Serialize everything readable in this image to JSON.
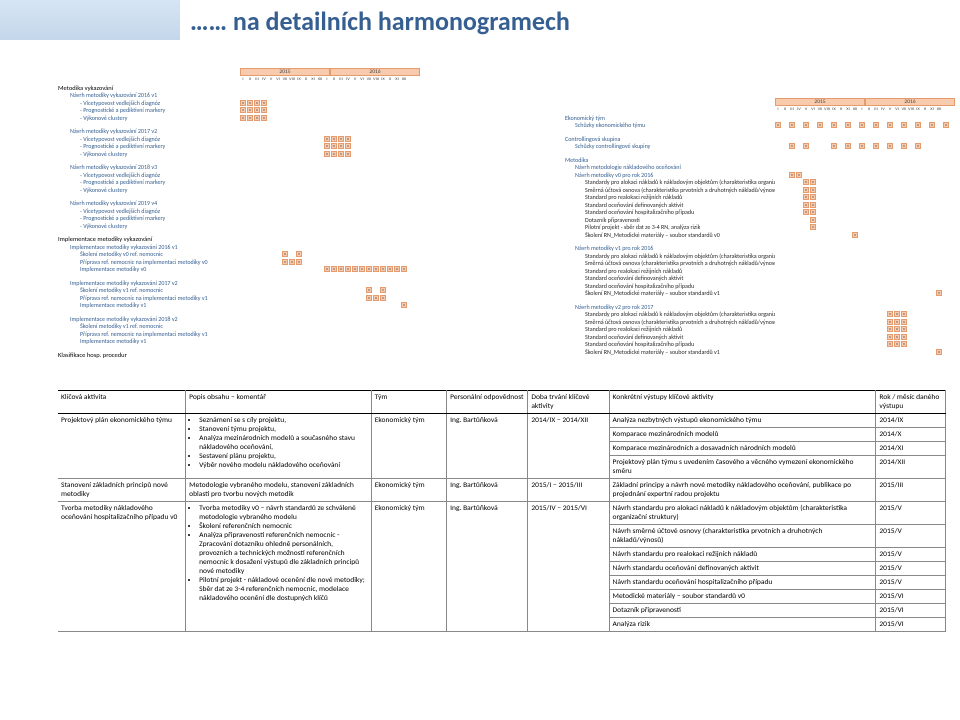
{
  "title": "…… na detailních harmonogramech",
  "months": [
    "I",
    "II",
    "III",
    "IV",
    "V",
    "VI",
    "VII",
    "VIII",
    "IX",
    "X",
    "XI",
    "XII"
  ],
  "years_left": [
    "2015",
    "2016"
  ],
  "years_right": [
    "2015",
    "2016"
  ],
  "left_tree": [
    {
      "lvl": 0,
      "t": "Metodika vykazování"
    },
    {
      "lvl": 1,
      "t": "Návrh metodiky vykazování 2016 v1"
    },
    {
      "lvl": 2,
      "t": "- Vícetypovost vedlejších diagnóz",
      "cells": [
        "x",
        "x",
        "x",
        "x"
      ]
    },
    {
      "lvl": 2,
      "t": "- Prognostické a pediktivní markery",
      "cells": [
        "x",
        "x",
        "x",
        "x"
      ]
    },
    {
      "lvl": 2,
      "t": "- Výkonové clustery",
      "cells": [
        "x",
        "x",
        "x",
        "x"
      ]
    },
    {
      "sp": 1
    },
    {
      "lvl": 1,
      "t": "Návrh metodiky vykazování 2017 v2"
    },
    {
      "lvl": 2,
      "t": "- Vícetypovost vedlejších diagnóz",
      "cells": [
        "x",
        "x",
        "x",
        "x"
      ],
      "off": 12
    },
    {
      "lvl": 2,
      "t": "- Prognostické a pediktivní markery",
      "cells": [
        "x",
        "x",
        "x",
        "x"
      ],
      "off": 12
    },
    {
      "lvl": 2,
      "t": "- Výkonové clustery",
      "cells": [
        "x",
        "x",
        "x",
        "x"
      ],
      "off": 12
    },
    {
      "sp": 1
    },
    {
      "lvl": 1,
      "t": "Návrh metodiky vykazování 2018 v3"
    },
    {
      "lvl": 2,
      "t": "- Vícetypovost vedlejších diagnóz"
    },
    {
      "lvl": 2,
      "t": "- Prognostické a pediktivní markery"
    },
    {
      "lvl": 2,
      "t": "- Výkonové clustery"
    },
    {
      "sp": 1
    },
    {
      "lvl": 1,
      "t": "Návrh metodiky vykazování 2019 v4"
    },
    {
      "lvl": 2,
      "t": "- Vícetypovost vedlejších diagnóz"
    },
    {
      "lvl": 2,
      "t": "- Prognostické a pediktivní markery"
    },
    {
      "lvl": 2,
      "t": "- Výkonové clustery"
    },
    {
      "sp": 1
    },
    {
      "lvl": 0,
      "t": "Implementace metodiky vykazování"
    },
    {
      "lvl": 1,
      "t": "Implementace metodiky vykazování 2016 v1"
    },
    {
      "lvl": 2,
      "t": "Školení metodiky v0 ref. nemocnic",
      "cells": [
        "x",
        "",
        "v"
      ],
      "off": 6
    },
    {
      "lvl": 2,
      "t": "Příprava ref. nemocnic na implementaci metodiky v0",
      "cells": [
        "x",
        "x",
        "x"
      ],
      "off": 6
    },
    {
      "lvl": 2,
      "t": "Implementace metodiky v0",
      "cells": [
        "x",
        "x",
        "x",
        "x",
        "x",
        "x",
        "x",
        "x",
        "x",
        "x",
        "x",
        "x"
      ],
      "off": 12
    },
    {
      "sp": 1
    },
    {
      "lvl": 1,
      "t": "Implementace metodiky vykazování 2017 v2"
    },
    {
      "lvl": 2,
      "t": "Školení metodiky v1 ref. nemocnic",
      "cells": [
        "x",
        "",
        "v"
      ],
      "off": 18
    },
    {
      "lvl": 2,
      "t": "Příprava ref. nemocnic na implementaci metodiky v1",
      "cells": [
        "x",
        "x",
        "x"
      ],
      "off": 18
    },
    {
      "lvl": 2,
      "t": "Implementace metodiky v1",
      "cells": [
        "x"
      ],
      "off": 23
    },
    {
      "sp": 1
    },
    {
      "lvl": 1,
      "t": "Implementace metodiky vykazování 2018 v2"
    },
    {
      "lvl": 2,
      "t": "Školení metodiky v1 ref. nemocnic"
    },
    {
      "lvl": 2,
      "t": "Příprava ref. nemocnic na implementaci metodiky v1"
    },
    {
      "lvl": 2,
      "t": "Implementace metodiky v1"
    },
    {
      "sp": 1
    },
    {
      "lvl": 0,
      "t": "Klasifikace hosp. procedur"
    }
  ],
  "right_tree": [
    {
      "lvl": 1,
      "t": "Ekonomický tým"
    },
    {
      "lvl": 2,
      "t": "Schůzky ekonomického týmu",
      "cells": [
        "x",
        "",
        "x",
        "",
        "x",
        "",
        "x",
        "",
        "x",
        "",
        "x",
        "",
        "x",
        "",
        "x",
        "",
        "x",
        "",
        "x",
        "",
        "x",
        "",
        "x",
        "",
        "x"
      ],
      "off": 0
    },
    {
      "sp": 1
    },
    {
      "lvl": 1,
      "t": "Controllingová skupina"
    },
    {
      "lvl": 2,
      "t": "Schůzky controllingové skupiny",
      "cells": [
        "x",
        "",
        "x",
        "",
        "",
        "",
        "x",
        "",
        "x",
        "",
        "x",
        "",
        "x",
        "",
        "x",
        "",
        "x",
        "",
        "x"
      ],
      "off": 2
    },
    {
      "sp": 1
    },
    {
      "lvl": 1,
      "t": "Metodika"
    },
    {
      "lvl": 2,
      "t": "Návrh metodologie nákladového oceňování"
    },
    {
      "lvl": 2,
      "t": "Návrh metodiky v0 pro rok 2016",
      "cells": [
        "x",
        "x"
      ],
      "off": 2
    },
    {
      "lvl": 3,
      "t": "Standardy pro alokaci nákladů k nákladovým objektům (charakteristika organizační struktury",
      "cells": [
        "x",
        "x"
      ],
      "off": 4
    },
    {
      "lvl": 3,
      "t": "Směrná účtová osnova (charakteristika prvotních a druhotných nákladů/výnosů)",
      "cells": [
        "x",
        "x"
      ],
      "off": 4
    },
    {
      "lvl": 3,
      "t": "Standard pro realokaci režijních nákladů",
      "cells": [
        "x",
        "x"
      ],
      "off": 4
    },
    {
      "lvl": 3,
      "t": "Standard oceňování definovaných aktivit",
      "cells": [
        "x",
        "x"
      ],
      "off": 4
    },
    {
      "lvl": 3,
      "t": "Standard oceňování hospitalizačního případu",
      "cells": [
        "x",
        "x"
      ],
      "off": 4
    },
    {
      "lvl": 3,
      "t": "Dotazník připravenosti",
      "cells": [
        "x"
      ],
      "off": 5
    },
    {
      "lvl": 3,
      "t": "Pilotní projekt - sběr dat ze 3-4 RN, analýza rizik",
      "cells": [
        "x"
      ],
      "off": 5
    },
    {
      "lvl": 3,
      "t": "Školení RN_Metodické materiály – soubor standardů v0",
      "cells": [
        "x"
      ],
      "off": 11
    },
    {
      "sp": 1
    },
    {
      "lvl": 2,
      "t": "Návrh metodiky v1 pro rok 2016"
    },
    {
      "lvl": 3,
      "t": "Standardy pro alokaci nákladů k nákladovým objektům (charakteristika organizační struktury)"
    },
    {
      "lvl": 3,
      "t": "Směrná účtová osnova (charakteristika prvotních a druhotných nákladů/výnosů)"
    },
    {
      "lvl": 3,
      "t": "Standard pro realokaci režijních nákladů"
    },
    {
      "lvl": 3,
      "t": "Standard oceňování definovaných aktivit"
    },
    {
      "lvl": 3,
      "t": "Standard oceňování hospitalizačního případu"
    },
    {
      "lvl": 3,
      "t": "Školení RN_Metodické materiály – soubor standardů v1",
      "cells": [
        "x"
      ],
      "off": 23
    },
    {
      "sp": 1
    },
    {
      "lvl": 2,
      "t": "Návrh metodiky v2 pro rok 2017"
    },
    {
      "lvl": 3,
      "t": "Standardy pro alokaci nákladů k nákladovým objektům (charakteristika organizační struktury)",
      "cells": [
        "x",
        "x",
        "x"
      ],
      "off": 16
    },
    {
      "lvl": 3,
      "t": "Směrná účtová osnova (charakteristika prvotních a druhotných nákladů/výnosů)",
      "cells": [
        "x",
        "x",
        "x"
      ],
      "off": 16
    },
    {
      "lvl": 3,
      "t": "Standard pro realokaci režijních nákladů",
      "cells": [
        "x",
        "x",
        "x"
      ],
      "off": 16
    },
    {
      "lvl": 3,
      "t": "Standard oceňování definovaných aktivit",
      "cells": [
        "x",
        "x",
        "x"
      ],
      "off": 16
    },
    {
      "lvl": 3,
      "t": "Standard oceňování hospitalizačního případu",
      "cells": [
        "x",
        "x",
        "x"
      ],
      "off": 16
    },
    {
      "lvl": 3,
      "t": "Školení RN_Metodické materiály – soubor standardů v1",
      "cells": [
        "x"
      ],
      "off": 23
    }
  ],
  "table": {
    "headers": [
      "Klíčová aktivita",
      "Popis obsahu – komentář",
      "Tým",
      "Personální odpovědnost",
      "Doba trvání klíčové aktivity",
      "Konkrétní výstupy klíčové aktivity",
      "Rok / měsíc daného výstupu"
    ],
    "col_widths": [
      "110",
      "160",
      "65",
      "70",
      "70",
      "230",
      "60"
    ],
    "rows": [
      {
        "a": "Projektový plán ekonomického týmu",
        "b": [
          "Seznámení se s cíly projektu,",
          "Stanovení týmu projektu,",
          "Analýza mezinárodních modelů a současného stavu nákladového oceňování,",
          "Sestavení plánu projektu,",
          "Výběr nového modelu nákladového oceňování"
        ],
        "c": "Ekonomický tým",
        "d": "Ing. Bartůňková",
        "e": "2014/IX – 2014/XII",
        "out": [
          [
            "Analýza nezbytných výstupů ekonomického týmu",
            "2014/IX"
          ],
          [
            "Komparace mezinárodních modelů",
            "2014/X"
          ],
          [
            "Komparace mezinárodních a dosavadních národních modelů",
            "2014/XI"
          ],
          [
            "Projektový plán týmu s uvedením časového a věcného vymezení ekonomického směru",
            "2014/XII"
          ]
        ]
      },
      {
        "a": "Stanovení základních principů nové metodiky",
        "b_plain": "Metodologie vybraného modelu, stanovení základních oblasti pro tvorbu nových metodik",
        "c": "Ekonomický tým",
        "d": "Ing. Bartůňková",
        "e": "2015/I – 2015/III",
        "out": [
          [
            "Základní principy a návrh nové metodiky nákladového oceňování, publikace po projednání expertní radou projektu",
            "2015/III"
          ]
        ]
      },
      {
        "a": "Tvorba metodiky nákladového oceňování hospitalizačního případu v0",
        "b": [
          "Tvorba metodiky v0 – návrh standardů ze schválené metodologie vybraného modelu",
          "Školení referenčních nemocnic",
          "Analýza připravenosti referenčních nemocnic - Zpracování dotazníku ohledně personálních, provozních a technických možností referenčních nemocnic k dosažení výstupů dle základních principů nové metodiky",
          "Pilotní projekt - nákladové ocenění dle nové metodiky; Sběr dat ze 3-4 referenčních nemocnic, modelace nákladového ocenění dle dostupných klíčů"
        ],
        "c": "Ekonomický tým",
        "d": "Ing. Bartůňková",
        "e": "2015/IV – 2015/VI",
        "out": [
          [
            "Návrh standardu pro alokaci nákladů k nákladovým objektům (charakteristika organizační struktury)",
            "2015/V"
          ],
          [
            "Návrh směrné účtové osnovy (charakteristika prvotních a druhotných nákladů/výnosů)",
            "2015/V"
          ],
          [
            "Návrh standardu pro realokaci režijních nákladů",
            "2015/V"
          ],
          [
            "Návrh standardu oceňování definovaných aktivit",
            "2015/V"
          ],
          [
            "Návrh standardu oceňování hospitalizačního případu",
            "2015/V"
          ],
          [
            "Metodické materiály – soubor standardů v0",
            "2015/VI"
          ],
          [
            "Dotazník připravenosti",
            "2015/VI"
          ],
          [
            "Analýza rizik",
            "2015/VI"
          ]
        ]
      }
    ]
  }
}
